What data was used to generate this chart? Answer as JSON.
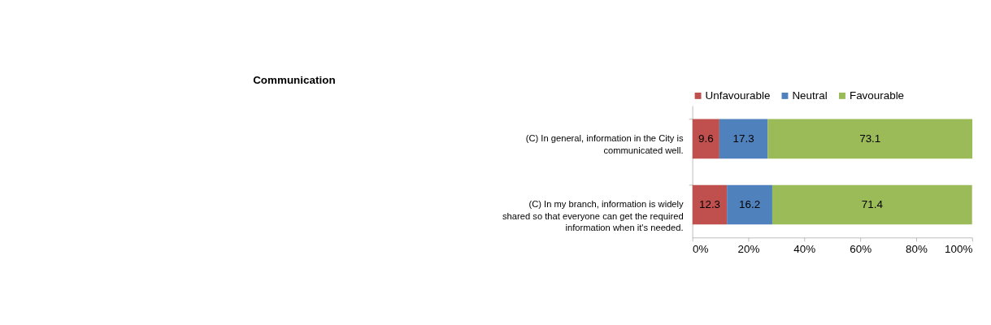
{
  "chart_data": {
    "type": "bar",
    "orientation": "horizontal",
    "stacked": true,
    "title": "Communication",
    "categories": [
      "(C) In general, information in the City is communicated well.",
      "(C) In my branch, information is widely shared so that everyone can get the required information when it's needed."
    ],
    "series": [
      {
        "name": "Unfavourable",
        "color": "#c0504d",
        "values": [
          9.6,
          12.3
        ]
      },
      {
        "name": "Neutral",
        "color": "#4f81bd",
        "values": [
          17.3,
          16.2
        ]
      },
      {
        "name": "Favourable",
        "color": "#9bbb59",
        "values": [
          73.1,
          71.4
        ]
      }
    ],
    "xlim": [
      0,
      100
    ],
    "xticks": [
      {
        "value": 0,
        "label": "0%"
      },
      {
        "value": 20,
        "label": "20%"
      },
      {
        "value": 40,
        "label": "40%"
      },
      {
        "value": 60,
        "label": "60%"
      },
      {
        "value": 80,
        "label": "80%"
      },
      {
        "value": 100,
        "label": "100%"
      }
    ],
    "data_labels": true,
    "legend": "top",
    "grid": false
  }
}
